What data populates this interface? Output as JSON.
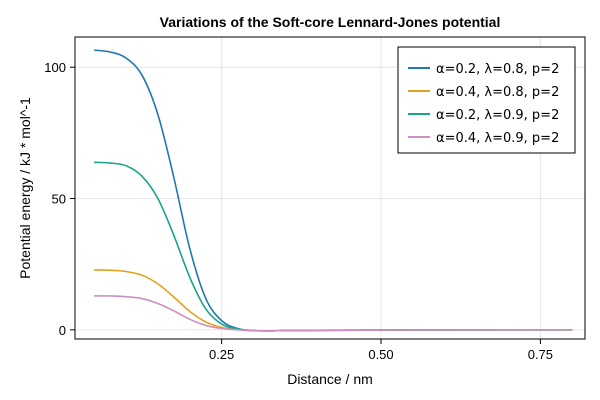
{
  "chart_data": {
    "type": "line",
    "title": "Variations of the Soft-core Lennard-Jones potential",
    "xlabel": "Distance / nm",
    "ylabel": "Potential energy / kJ * mol^-1",
    "xlim": [
      0.02,
      0.82
    ],
    "ylim": [
      -3.5,
      111.5
    ],
    "xticks": [
      0.25,
      0.5,
      0.75
    ],
    "xtick_labels": [
      "0.25",
      "0.50",
      "0.75"
    ],
    "yticks": [
      0,
      50,
      100
    ],
    "ytick_labels": [
      "0",
      "50",
      "100"
    ],
    "grid": true,
    "legend_position": "top-right",
    "x": [
      0.05,
      0.075,
      0.1,
      0.125,
      0.15,
      0.175,
      0.2,
      0.225,
      0.25,
      0.275,
      0.3,
      0.325,
      0.35,
      0.4,
      0.5,
      0.6,
      0.7,
      0.8
    ],
    "series": [
      {
        "name": "α=0.2, λ=0.8, p=2",
        "color": "#1f77b4",
        "values": [
          106.5,
          105.8,
          103.5,
          97.0,
          82.0,
          58.0,
          31.0,
          12.0,
          3.5,
          0.5,
          -0.3,
          -0.4,
          -0.3,
          -0.2,
          -0.1,
          -0.05,
          -0.02,
          -0.01
        ]
      },
      {
        "name": "α=0.4, λ=0.8, p=2",
        "color": "#e6a11a",
        "values": [
          22.8,
          22.7,
          22.2,
          20.8,
          17.5,
          12.5,
          7.0,
          3.0,
          0.9,
          0.1,
          -0.3,
          -0.4,
          -0.3,
          -0.2,
          -0.1,
          -0.05,
          -0.02,
          -0.01
        ]
      },
      {
        "name": "α=0.2, λ=0.9, p=2",
        "color": "#17a589",
        "values": [
          63.8,
          63.5,
          62.5,
          58.5,
          50.0,
          36.0,
          20.0,
          8.0,
          2.2,
          0.3,
          -0.3,
          -0.4,
          -0.3,
          -0.2,
          -0.1,
          -0.05,
          -0.02,
          -0.01
        ]
      },
      {
        "name": "α=0.4, λ=0.9, p=2",
        "color": "#cc8fbf",
        "values": [
          12.9,
          12.9,
          12.6,
          11.9,
          10.0,
          7.2,
          4.0,
          1.7,
          0.5,
          0.0,
          -0.3,
          -0.4,
          -0.3,
          -0.2,
          -0.1,
          -0.05,
          -0.02,
          -0.01
        ]
      }
    ]
  }
}
